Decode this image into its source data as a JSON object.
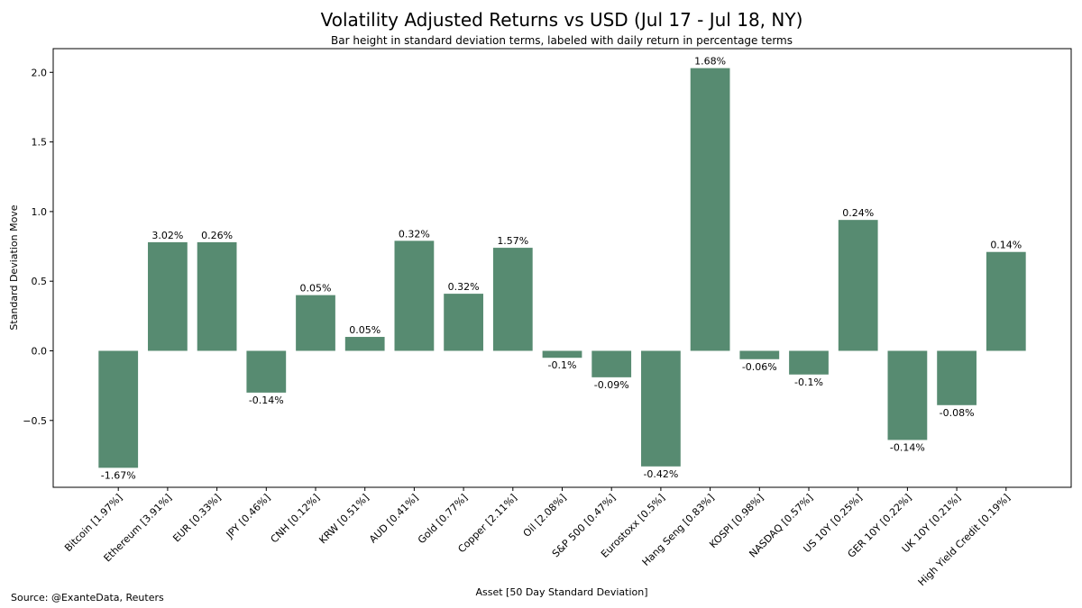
{
  "chart_data": {
    "type": "bar",
    "title": "Volatility Adjusted Returns vs USD (Jul 17 - Jul 18, NY)",
    "subtitle": "Bar height in standard deviation terms, labeled with daily return in percentage terms",
    "xlabel": "Asset [50 Day Standard Deviation]",
    "ylabel": "Standard Deviation Move",
    "source": "Source: @ExanteData, Reuters",
    "categories": [
      "Bitcoin [1.97%]",
      "Ethereum [3.91%]",
      "EUR [0.33%]",
      "JPY [0.46%]",
      "CNH [0.12%]",
      "KRW [0.51%]",
      "AUD [0.41%]",
      "Gold [0.77%]",
      "Copper [2.11%]",
      "Oil [2.08%]",
      "S&P 500 [0.47%]",
      "Eurostoxx [0.5%]",
      "Hang Seng [0.83%]",
      "KOSPI [0.98%]",
      "NASDAQ [0.57%]",
      "US 10Y [0.25%]",
      "GER 10Y [0.22%]",
      "UK 10Y [0.21%]",
      "High Yield Credit [0.19%]"
    ],
    "values": [
      -0.84,
      0.78,
      0.78,
      -0.3,
      0.4,
      0.1,
      0.79,
      0.41,
      0.74,
      -0.05,
      -0.19,
      -0.83,
      2.03,
      -0.06,
      -0.17,
      0.94,
      -0.64,
      -0.39,
      0.71
    ],
    "value_labels": [
      "-1.67%",
      "3.02%",
      "0.26%",
      "-0.14%",
      "0.05%",
      "0.05%",
      "0.32%",
      "0.32%",
      "1.57%",
      "-0.1%",
      "-0.09%",
      "-0.42%",
      "1.68%",
      "-0.06%",
      "-0.1%",
      "0.24%",
      "-0.14%",
      "-0.08%",
      "0.14%"
    ],
    "ylim": [
      -0.98,
      2.17
    ],
    "yticks": [
      -0.5,
      0.0,
      0.5,
      1.0,
      1.5,
      2.0
    ],
    "ytick_labels": [
      "−0.5",
      "0.0",
      "0.5",
      "1.0",
      "1.5",
      "2.0"
    ],
    "grid": false,
    "bar_color": "#578b71"
  }
}
